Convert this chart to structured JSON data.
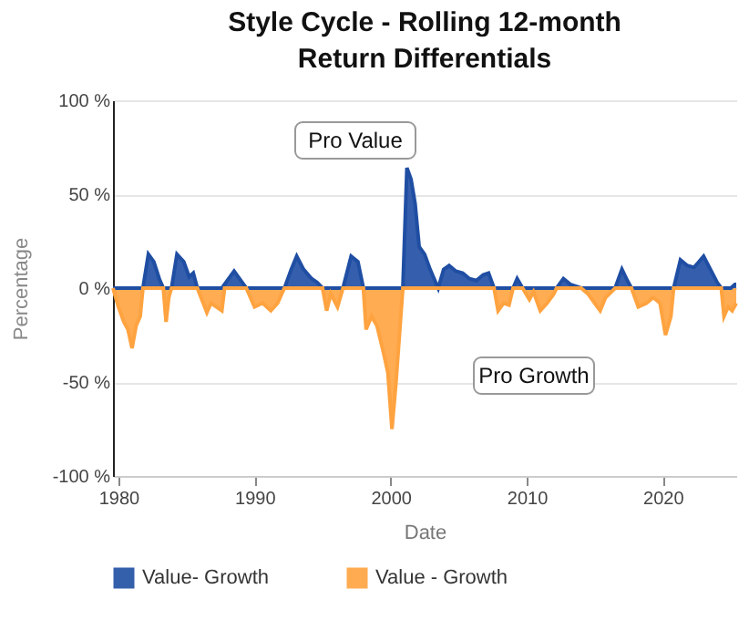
{
  "chart_data": {
    "type": "area",
    "title": "Style Cycle - Rolling 12-month Return Differentials",
    "xlabel": "Date",
    "ylabel": "Percentage",
    "xlim": [
      1979.6,
      2025.4
    ],
    "xticks": [
      1980,
      1990,
      2000,
      2010,
      2020
    ],
    "ylim": [
      -100,
      100
    ],
    "yticks": [
      {
        "value": -100,
        "label": "-100 %"
      },
      {
        "value": -50,
        "label": "-50 %"
      },
      {
        "value": 0,
        "label": "0 %"
      },
      {
        "value": 50,
        "label": "50 %"
      },
      {
        "value": 100,
        "label": "100 %"
      }
    ],
    "grid": "y",
    "legend": "bottom",
    "annotations": [
      "Pro Value",
      "Pro Growth"
    ],
    "series": [
      {
        "name": "Value- Growth",
        "color": "#1f4ea3",
        "x": [
          1979.6,
          1981.8,
          1982.2,
          1982.6,
          1983.0,
          1983.3,
          1983.9,
          1984.3,
          1984.8,
          1985.2,
          1985.5,
          1985.8,
          1987.6,
          1988.5,
          1989.2,
          1989.4,
          1992.2,
          1992.7,
          1993.1,
          1993.6,
          1994.2,
          1994.6,
          1995.0,
          1996.5,
          1997.1,
          1997.6,
          1998.0,
          2000.9,
          2001.2,
          2001.5,
          2001.8,
          2002.1,
          2002.5,
          2002.9,
          2003.2,
          2003.5,
          2003.9,
          2004.3,
          2004.8,
          2005.3,
          2005.8,
          2006.3,
          2006.8,
          2007.2,
          2007.6,
          2009.0,
          2009.3,
          2009.7,
          2012.2,
          2012.7,
          2013.2,
          2013.6,
          2014.0,
          2016.5,
          2017.0,
          2017.4,
          2017.7,
          2020.8,
          2021.3,
          2021.8,
          2022.3,
          2023.0,
          2023.5,
          2024.0,
          2024.3,
          2025.0,
          2025.3,
          2025.4
        ],
        "values": [
          0,
          0,
          18,
          14,
          5,
          0,
          0,
          18,
          14,
          6,
          8,
          0,
          0,
          9,
          2,
          0,
          0,
          10,
          17,
          10,
          5,
          3,
          0,
          0,
          17,
          14,
          0,
          0,
          64,
          58,
          45,
          22,
          18,
          10,
          5,
          0,
          10,
          12,
          9,
          8,
          5,
          4,
          7,
          8,
          0,
          0,
          5,
          0,
          0,
          5,
          2,
          1,
          0,
          0,
          10,
          4,
          0,
          0,
          15,
          12,
          11,
          17,
          10,
          3,
          0,
          0,
          2,
          2
        ]
      },
      {
        "name": "Value - Growth",
        "color": "#ffa340",
        "x": [
          1979.6,
          1980.0,
          1980.4,
          1980.7,
          1981.0,
          1981.3,
          1981.6,
          1981.8,
          1983.3,
          1983.5,
          1983.7,
          1983.9,
          1985.8,
          1986.5,
          1986.8,
          1987.2,
          1987.6,
          1987.8,
          1989.4,
          1990.0,
          1990.6,
          1991.2,
          1991.7,
          1992.0,
          1992.2,
          1995.0,
          1995.3,
          1995.6,
          1996.1,
          1996.5,
          1998.0,
          1998.2,
          1998.6,
          1999.0,
          1999.5,
          1999.8,
          2000.1,
          2000.4,
          2000.7,
          2000.9,
          2007.6,
          2007.9,
          2008.3,
          2008.7,
          2009.0,
          2009.7,
          2010.2,
          2010.5,
          2011.0,
          2011.5,
          2012.0,
          2012.2,
          2014.0,
          2014.5,
          2015.0,
          2015.4,
          2015.8,
          2016.5,
          2017.7,
          2018.2,
          2018.8,
          2019.3,
          2019.8,
          2020.2,
          2020.6,
          2020.8,
          2024.3,
          2024.5,
          2024.8,
          2025.1,
          2025.4
        ],
        "values": [
          0,
          -10,
          -18,
          -22,
          -32,
          -20,
          -15,
          0,
          0,
          -18,
          -5,
          0,
          0,
          -13,
          -8,
          -10,
          -12,
          0,
          0,
          -10,
          -8,
          -12,
          -8,
          -3,
          0,
          0,
          -12,
          -3,
          -10,
          0,
          0,
          -22,
          -15,
          -20,
          -35,
          -45,
          -75,
          -50,
          -20,
          0,
          0,
          -12,
          -8,
          -9,
          0,
          0,
          -6,
          -2,
          -12,
          -8,
          -3,
          0,
          0,
          -3,
          -8,
          -12,
          -5,
          0,
          0,
          -10,
          -8,
          -5,
          -8,
          -25,
          -15,
          0,
          0,
          -15,
          -10,
          -12,
          -8
        ]
      }
    ]
  }
}
